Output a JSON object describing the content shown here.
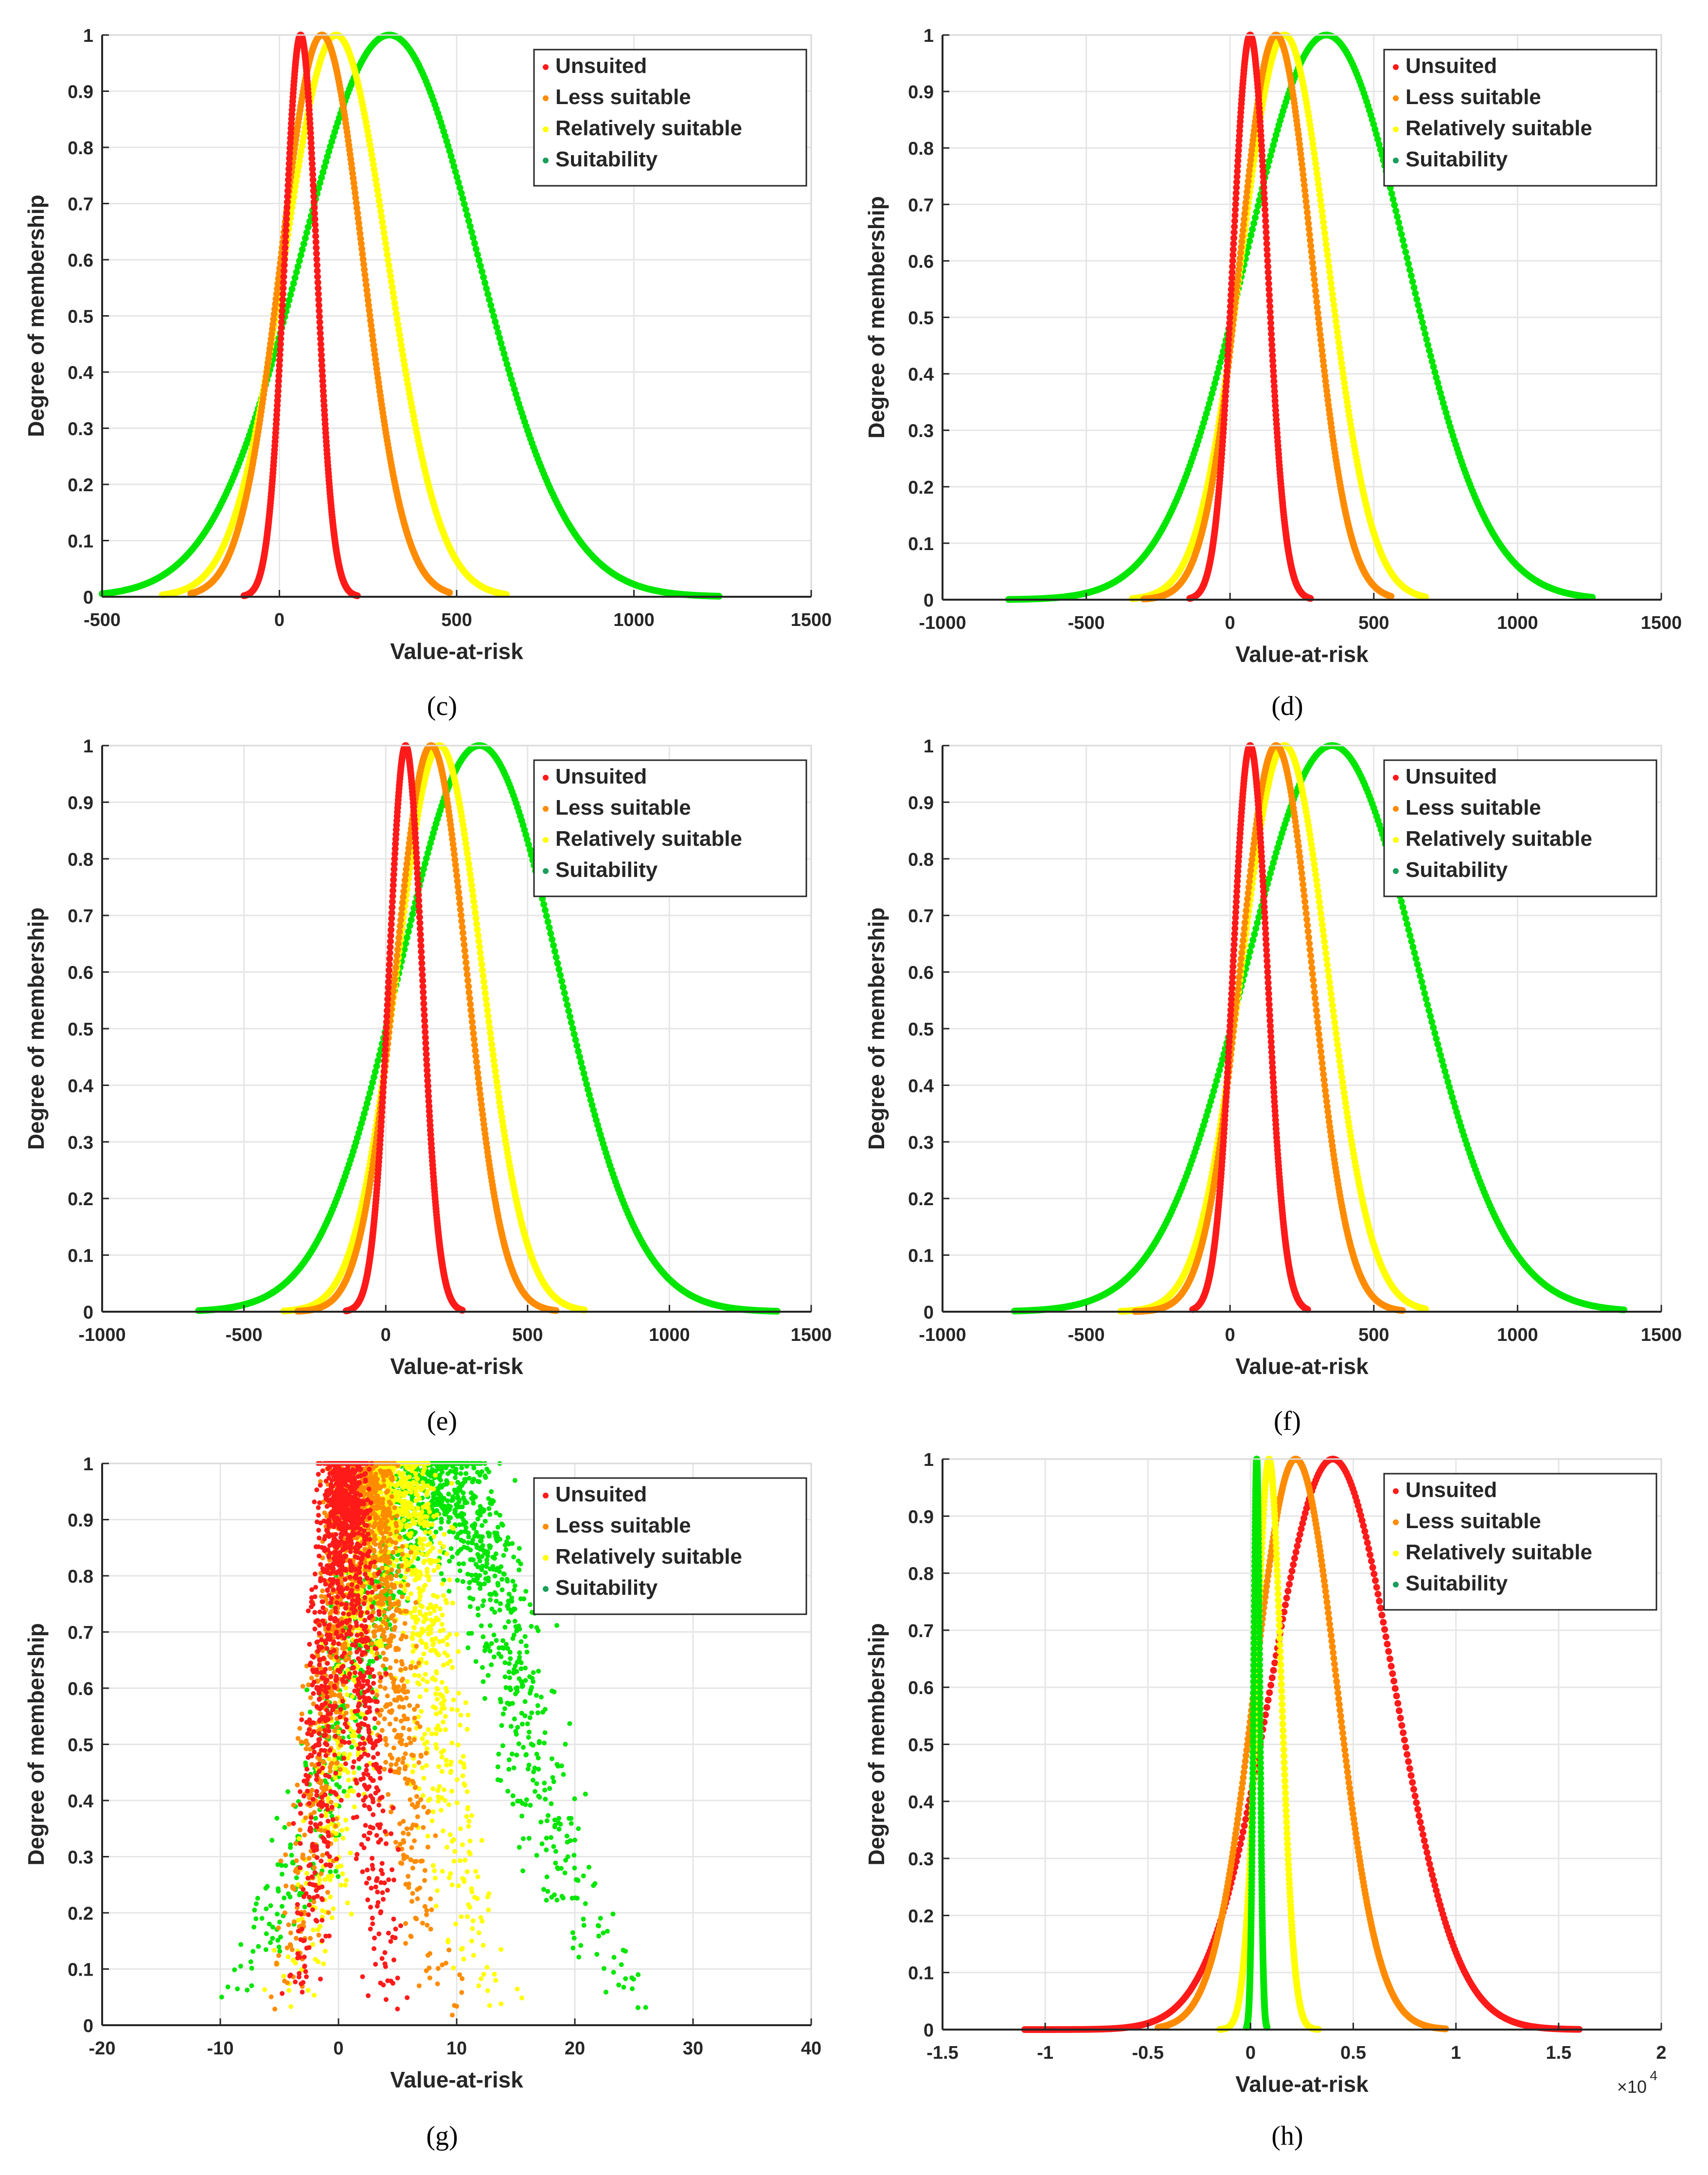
{
  "figure": {
    "panel_labels": [
      "(c)",
      "(d)",
      "(e)",
      "(f)",
      "(g)",
      "(h)"
    ]
  },
  "legend_colors": {
    "Unsuited": "#ff1a1a",
    "Less suitable": "#ff8c00",
    "Relatively suitable": "#ffff00",
    "Suitability": "#00e600"
  },
  "legend_marker_colors": {
    "Unsuited": "#ff1a1a",
    "Less suitable": "#ff8c00",
    "Relatively suitable": "#ffff00",
    "Suitability": "#1a9e5a"
  },
  "chart_data": [
    {
      "id": "c",
      "type": "scatter",
      "title": "",
      "caption": "(c)",
      "xlabel": "Value-at-risk",
      "ylabel": "Degree of membership",
      "xlim": [
        -500,
        1500
      ],
      "ylim": [
        0,
        1
      ],
      "xticks": [
        -500,
        0,
        500,
        1000,
        1500
      ],
      "xtick_labels": [
        "-500",
        "0",
        "500",
        "1000",
        "1500"
      ],
      "yticks": [
        0,
        0.1,
        0.2,
        0.3,
        0.4,
        0.5,
        0.6,
        0.7,
        0.8,
        0.9,
        1
      ],
      "ytick_labels": [
        "0",
        "0.1",
        "0.2",
        "0.3",
        "0.4",
        "0.5",
        "0.6",
        "0.7",
        "0.8",
        "0.9",
        "1"
      ],
      "xmultiplier": "",
      "grid": true,
      "legend": "top-right",
      "series": [
        {
          "name": "Unsuited",
          "center": 60,
          "spread": 45,
          "noise": 0,
          "range": [
            -100,
            220
          ]
        },
        {
          "name": "Less suitable",
          "center": 120,
          "spread": 115,
          "noise": 0,
          "range": [
            -250,
            480
          ]
        },
        {
          "name": "Relatively suitable",
          "center": 160,
          "spread": 145,
          "noise": 0,
          "range": [
            -330,
            640
          ]
        },
        {
          "name": "Suitability",
          "center": 310,
          "spread": 250,
          "noise": 0,
          "range": [
            -500,
            1240
          ]
        }
      ]
    },
    {
      "id": "d",
      "type": "scatter",
      "title": "",
      "caption": "(d)",
      "xlabel": "Value-at-risk",
      "ylabel": "Degree of membership",
      "xlim": [
        -1000,
        1500
      ],
      "ylim": [
        0,
        1
      ],
      "xticks": [
        -1000,
        -500,
        0,
        500,
        1000,
        1500
      ],
      "xtick_labels": [
        "-1000",
        "-500",
        "0",
        "500",
        "1000",
        "1500"
      ],
      "yticks": [
        0,
        0.1,
        0.2,
        0.3,
        0.4,
        0.5,
        0.6,
        0.7,
        0.8,
        0.9,
        1
      ],
      "ytick_labels": [
        "0",
        "0.1",
        "0.2",
        "0.3",
        "0.4",
        "0.5",
        "0.6",
        "0.7",
        "0.8",
        "0.9",
        "1"
      ],
      "xmultiplier": "",
      "grid": true,
      "legend": "top-right",
      "series": [
        {
          "name": "Unsuited",
          "center": 70,
          "spread": 60,
          "noise": 0,
          "range": [
            -140,
            280
          ]
        },
        {
          "name": "Less suitable",
          "center": 160,
          "spread": 125,
          "noise": 0,
          "range": [
            -300,
            560
          ]
        },
        {
          "name": "Relatively suitable",
          "center": 190,
          "spread": 150,
          "noise": 0,
          "range": [
            -340,
            680
          ]
        },
        {
          "name": "Suitability",
          "center": 335,
          "spread": 280,
          "noise": 0,
          "range": [
            -770,
            1260
          ]
        }
      ]
    },
    {
      "id": "e",
      "type": "scatter",
      "title": "",
      "caption": "(e)",
      "xlabel": "Value-at-risk",
      "ylabel": "Degree of membership",
      "xlim": [
        -1000,
        1500
      ],
      "ylim": [
        0,
        1
      ],
      "xticks": [
        -1000,
        -500,
        0,
        500,
        1000,
        1500
      ],
      "xtick_labels": [
        "-1000",
        "-500",
        "0",
        "500",
        "1000",
        "1500"
      ],
      "yticks": [
        0,
        0.1,
        0.2,
        0.3,
        0.4,
        0.5,
        0.6,
        0.7,
        0.8,
        0.9,
        1
      ],
      "ytick_labels": [
        "0",
        "0.1",
        "0.2",
        "0.3",
        "0.4",
        "0.5",
        "0.6",
        "0.7",
        "0.8",
        "0.9",
        "1"
      ],
      "xmultiplier": "",
      "grid": true,
      "legend": "top-right",
      "series": [
        {
          "name": "Unsuited",
          "center": 70,
          "spread": 58,
          "noise": 0,
          "range": [
            -140,
            270
          ]
        },
        {
          "name": "Less suitable",
          "center": 160,
          "spread": 125,
          "noise": 0,
          "range": [
            -310,
            600
          ]
        },
        {
          "name": "Relatively suitable",
          "center": 190,
          "spread": 150,
          "noise": 0,
          "range": [
            -360,
            700
          ]
        },
        {
          "name": "Suitability",
          "center": 330,
          "spread": 280,
          "noise": 0,
          "range": [
            -660,
            1380
          ]
        }
      ]
    },
    {
      "id": "f",
      "type": "scatter",
      "title": "",
      "caption": "(f)",
      "xlabel": "Value-at-risk",
      "ylabel": "Degree of membership",
      "xlim": [
        -1000,
        1500
      ],
      "ylim": [
        0,
        1
      ],
      "xticks": [
        -1000,
        -500,
        0,
        500,
        1000,
        1500
      ],
      "xtick_labels": [
        "-1000",
        "-500",
        "0",
        "500",
        "1000",
        "1500"
      ],
      "yticks": [
        0,
        0.1,
        0.2,
        0.3,
        0.4,
        0.5,
        0.6,
        0.7,
        0.8,
        0.9,
        1
      ],
      "ytick_labels": [
        "0",
        "0.1",
        "0.2",
        "0.3",
        "0.4",
        "0.5",
        "0.6",
        "0.7",
        "0.8",
        "0.9",
        "1"
      ],
      "xmultiplier": "",
      "grid": true,
      "legend": "top-right",
      "series": [
        {
          "name": "Unsuited",
          "center": 70,
          "spread": 60,
          "noise": 0,
          "range": [
            -130,
            270
          ]
        },
        {
          "name": "Less suitable",
          "center": 160,
          "spread": 125,
          "noise": 0,
          "range": [
            -330,
            600
          ]
        },
        {
          "name": "Relatively suitable",
          "center": 190,
          "spread": 150,
          "noise": 0,
          "range": [
            -380,
            680
          ]
        },
        {
          "name": "Suitability",
          "center": 355,
          "spread": 300,
          "noise": 0,
          "range": [
            -750,
            1370
          ]
        }
      ]
    },
    {
      "id": "g",
      "type": "scatter",
      "title": "",
      "caption": "(g)",
      "xlabel": "Value-at-risk",
      "ylabel": "Degree of membership",
      "xlim": [
        -20,
        40
      ],
      "ylim": [
        0,
        1
      ],
      "xticks": [
        -20,
        -10,
        0,
        10,
        20,
        30,
        40
      ],
      "xtick_labels": [
        "-20",
        "-10",
        "0",
        "10",
        "20",
        "30",
        "40"
      ],
      "yticks": [
        0,
        0.1,
        0.2,
        0.3,
        0.4,
        0.5,
        0.6,
        0.7,
        0.8,
        0.9,
        1
      ],
      "ytick_labels": [
        "0",
        "0.1",
        "0.2",
        "0.3",
        "0.4",
        "0.5",
        "0.6",
        "0.7",
        "0.8",
        "0.9",
        "1"
      ],
      "xmultiplier": "",
      "grid": true,
      "legend": "top-right",
      "series": [
        {
          "name": "Unsuited",
          "center": 0.5,
          "spread": 1.6,
          "noise": 1.3,
          "range": [
            -5,
            6
          ]
        },
        {
          "name": "Less suitable",
          "center": 2,
          "spread": 2.8,
          "noise": 1.6,
          "range": [
            -6,
            10
          ]
        },
        {
          "name": "Relatively suitable",
          "center": 4.5,
          "spread": 3.5,
          "noise": 2.0,
          "range": [
            -7,
            18
          ]
        },
        {
          "name": "Suitability",
          "center": 8,
          "spread": 7,
          "noise": 2.3,
          "range": [
            -19,
            33
          ]
        }
      ]
    },
    {
      "id": "h",
      "type": "scatter",
      "title": "",
      "caption": "(h)",
      "xlabel": "Value-at-risk",
      "ylabel": "Degree of membership",
      "xlim": [
        -1.5,
        2
      ],
      "ylim": [
        0,
        1
      ],
      "xticks": [
        -1.5,
        -1,
        -0.5,
        0,
        0.5,
        1,
        1.5,
        2
      ],
      "xtick_labels": [
        "-1.5",
        "-1",
        "-0.5",
        "0",
        "0.5",
        "1",
        "1.5",
        "2"
      ],
      "yticks": [
        0,
        0.1,
        0.2,
        0.3,
        0.4,
        0.5,
        0.6,
        0.7,
        0.8,
        0.9,
        1
      ],
      "ytick_labels": [
        "0",
        "0.1",
        "0.2",
        "0.3",
        "0.4",
        "0.5",
        "0.6",
        "0.7",
        "0.8",
        "0.9",
        "1"
      ],
      "xmultiplier": "×10",
      "xmultiplier_exp": "4",
      "grid": true,
      "legend": "top-right",
      "series": [
        {
          "name": "Unsuited",
          "center": 0.4,
          "spread": 0.3,
          "noise": 0,
          "range": [
            -1.1,
            1.6
          ]
        },
        {
          "name": "Less suitable",
          "center": 0.22,
          "spread": 0.2,
          "noise": 0,
          "range": [
            -0.45,
            0.95
          ]
        },
        {
          "name": "Relatively suitable",
          "center": 0.09,
          "spread": 0.06,
          "noise": 0,
          "range": [
            -0.15,
            0.33
          ]
        },
        {
          "name": "Suitability",
          "center": 0.03,
          "spread": 0.015,
          "noise": 0,
          "range": [
            -0.02,
            0.08
          ]
        }
      ]
    }
  ]
}
